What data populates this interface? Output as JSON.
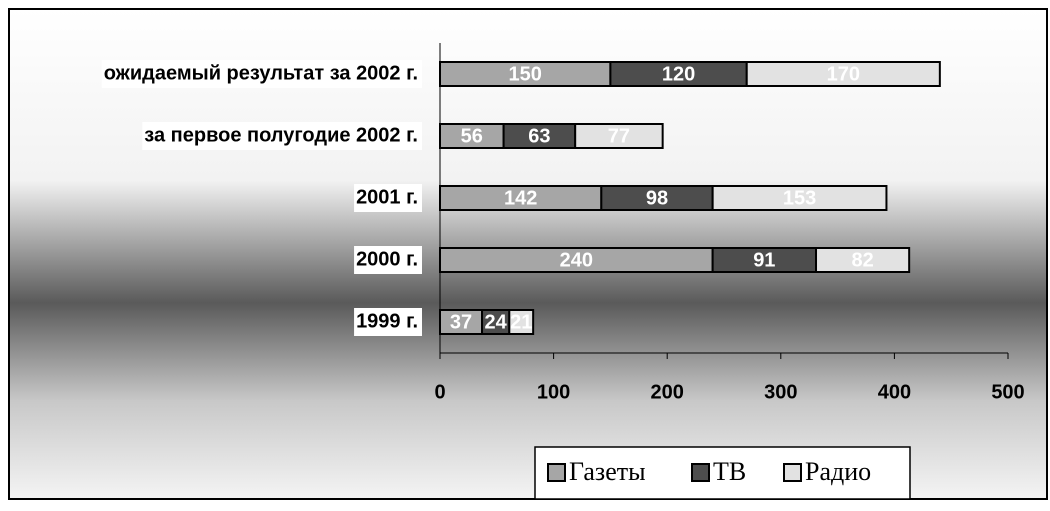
{
  "chart_data": {
    "type": "bar",
    "orientation": "horizontal",
    "stacked": true,
    "categories": [
      "1999 г.",
      "2000 г.",
      "2001 г.",
      "за первое полугодие 2002 г.",
      "ожидаемый результат за 2002 г."
    ],
    "series": [
      {
        "name": "Газеты",
        "color": "#a6a6a6",
        "values": [
          37,
          240,
          142,
          56,
          150
        ]
      },
      {
        "name": "ТВ",
        "color": "#4d4d4d",
        "values": [
          24,
          91,
          98,
          63,
          120
        ]
      },
      {
        "name": "Радио",
        "color": "#e2e2e2",
        "values": [
          21,
          82,
          153,
          77,
          170
        ]
      }
    ],
    "xlim": [
      0,
      500
    ],
    "xticks": [
      0,
      100,
      200,
      300,
      400,
      500
    ],
    "legend": "bottom"
  }
}
